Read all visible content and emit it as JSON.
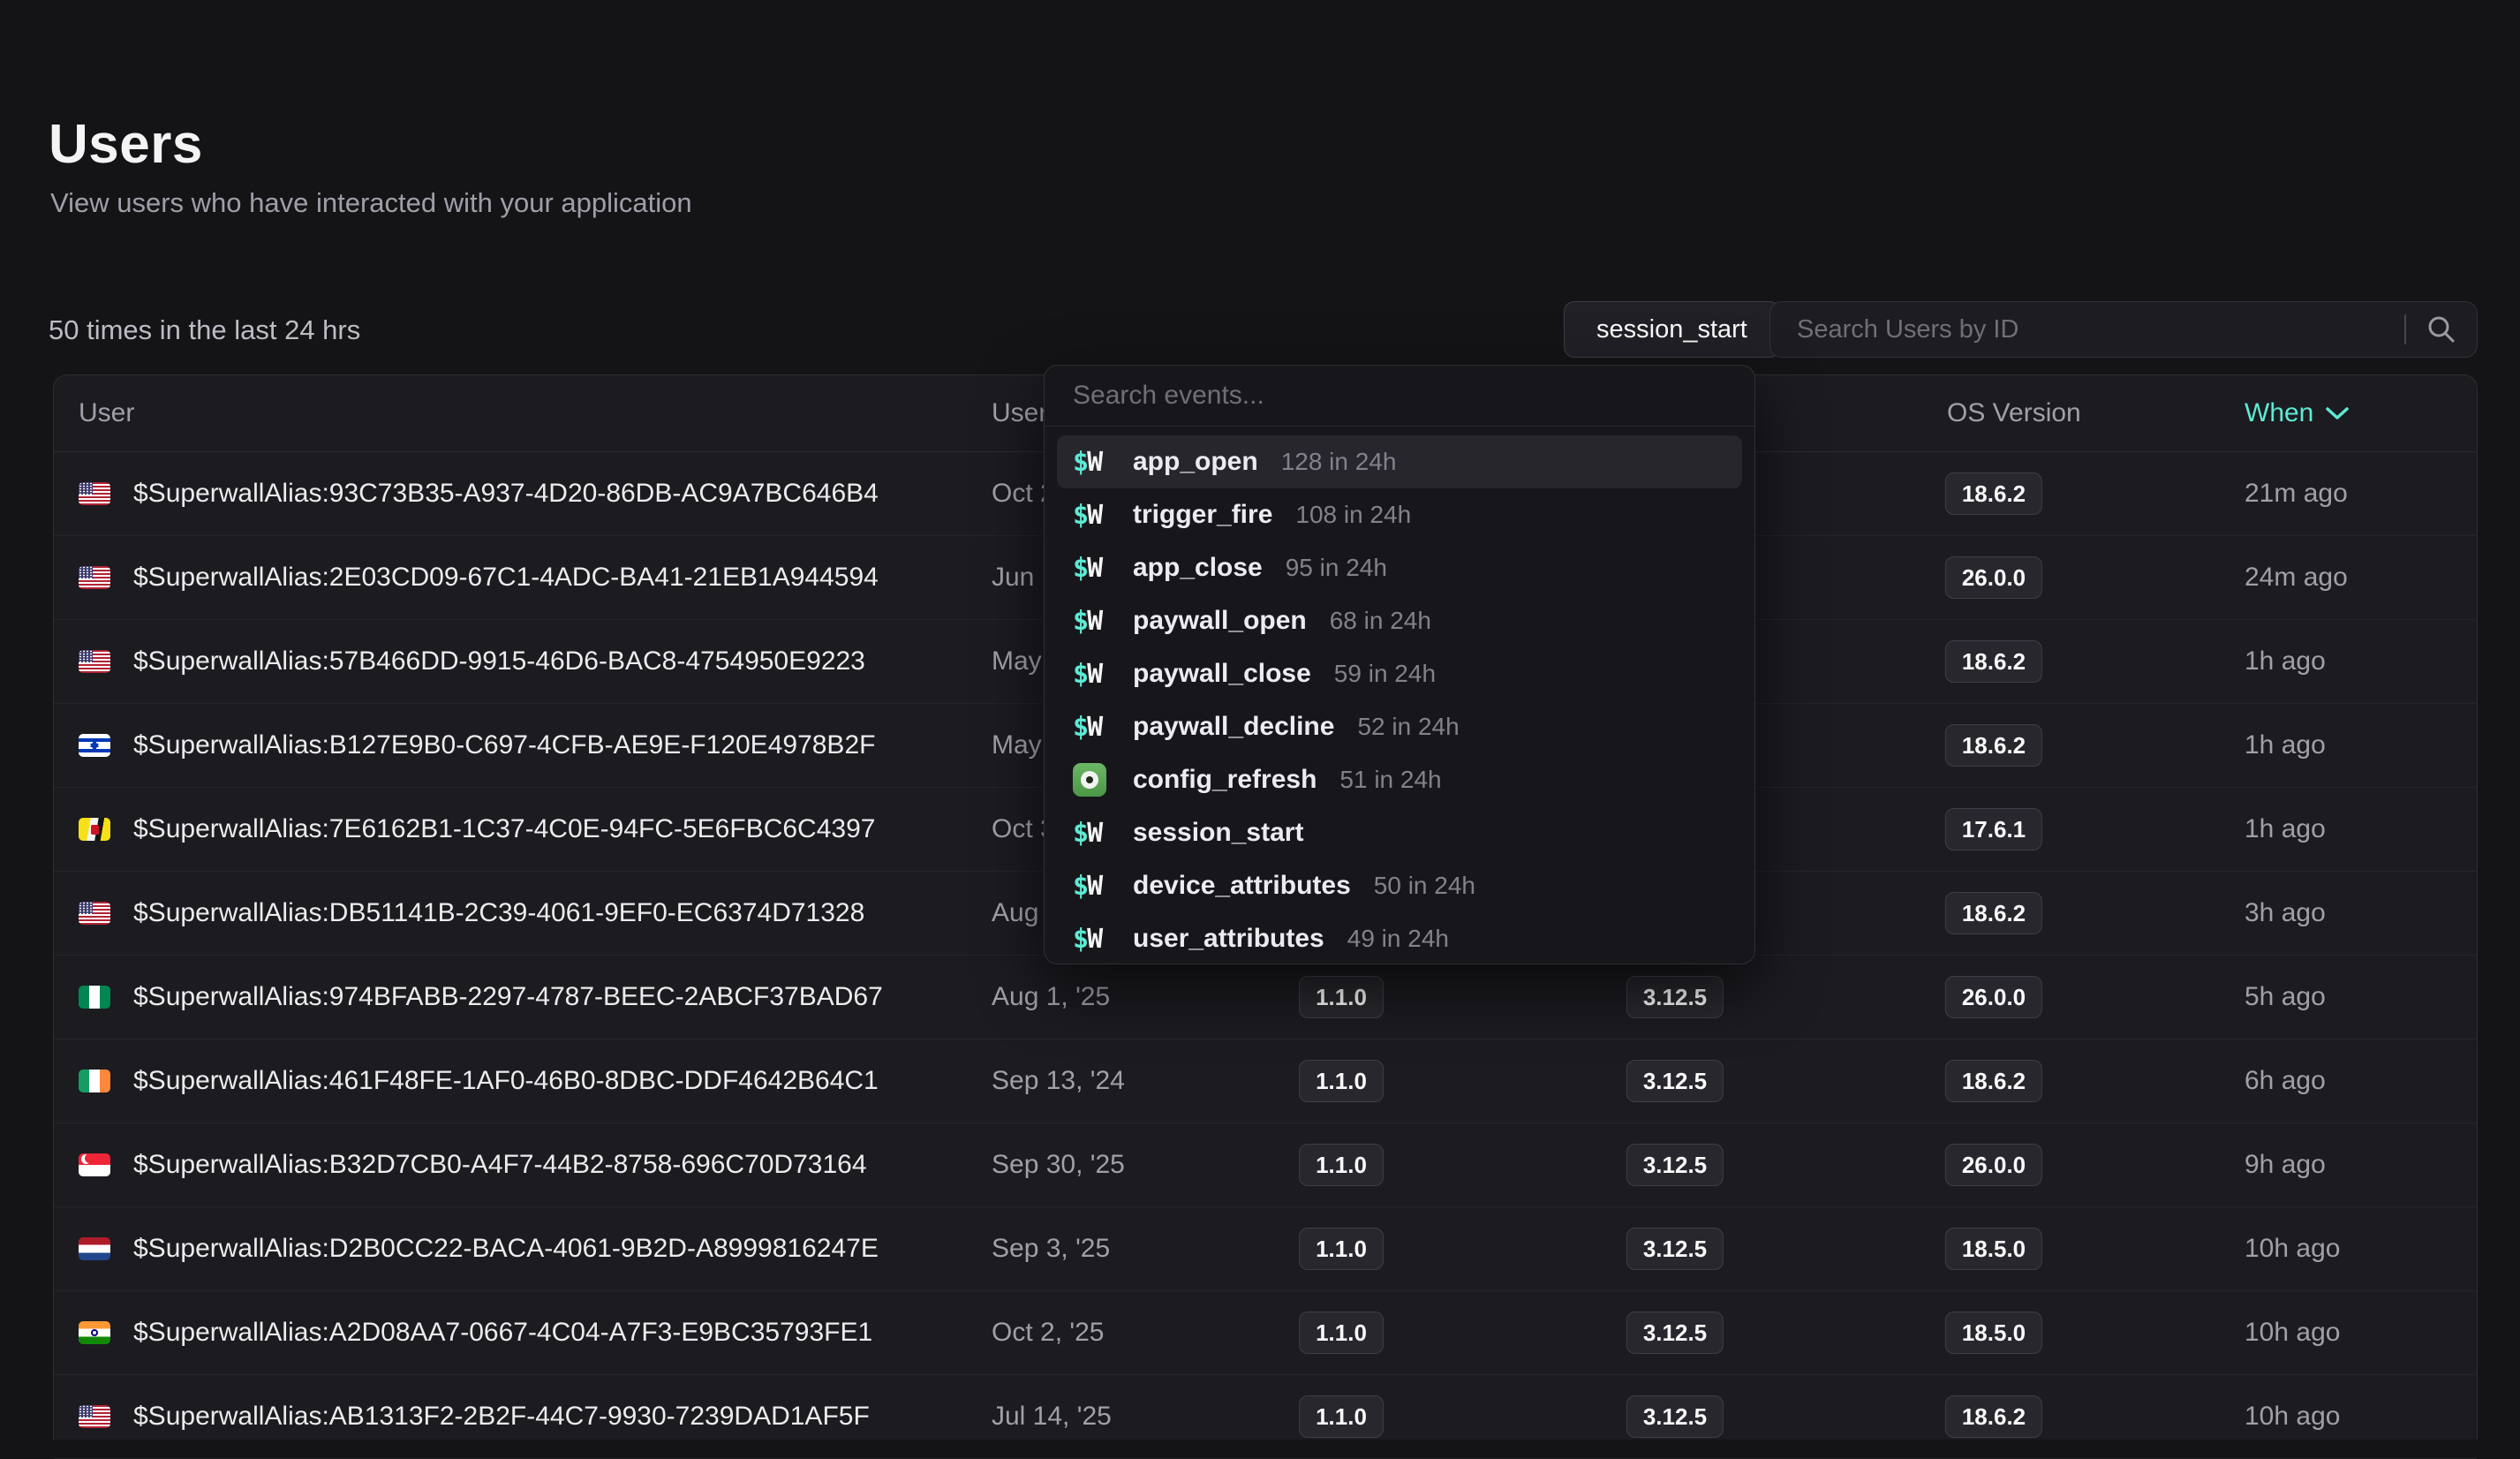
{
  "page": {
    "title": "Users",
    "subtitle": "View users who have interacted with your application"
  },
  "toolbar": {
    "stats_text": "50 times in the last 24 hrs",
    "event_filter_label": "session_start",
    "search_placeholder": "Search Users by ID"
  },
  "events_dropdown": {
    "search_placeholder": "Search events...",
    "sw_logo": "$W",
    "items": [
      {
        "icon": "sw",
        "name": "app_open",
        "count": "128 in 24h",
        "highlighted": true
      },
      {
        "icon": "sw",
        "name": "trigger_fire",
        "count": "108 in 24h",
        "highlighted": false
      },
      {
        "icon": "sw",
        "name": "app_close",
        "count": "95 in 24h",
        "highlighted": false
      },
      {
        "icon": "sw",
        "name": "paywall_open",
        "count": "68 in 24h",
        "highlighted": false
      },
      {
        "icon": "sw",
        "name": "paywall_close",
        "count": "59 in 24h",
        "highlighted": false
      },
      {
        "icon": "sw",
        "name": "paywall_decline",
        "count": "52 in 24h",
        "highlighted": false
      },
      {
        "icon": "app",
        "name": "config_refresh",
        "count": "51 in 24h",
        "highlighted": false
      },
      {
        "icon": "sw",
        "name": "session_start",
        "count": "",
        "highlighted": false
      },
      {
        "icon": "sw",
        "name": "device_attributes",
        "count": "50 in 24h",
        "highlighted": false
      },
      {
        "icon": "sw",
        "name": "user_attributes",
        "count": "49 in 24h",
        "highlighted": false
      }
    ]
  },
  "table": {
    "headers": {
      "user": "User",
      "user_since": "User",
      "os_version": "OS Version",
      "when": "When"
    },
    "rows": [
      {
        "flag": "us",
        "id": "$SuperwallAlias:93C73B35-A937-4D20-86DB-AC9A7BC646B4",
        "since": "Oct 2",
        "app_version": "",
        "sdk_version": "",
        "os_version": "18.6.2",
        "when": "21m ago"
      },
      {
        "flag": "us",
        "id": "$SuperwallAlias:2E03CD09-67C1-4ADC-BA41-21EB1A944594",
        "since": "Jun",
        "app_version": "",
        "sdk_version": "",
        "os_version": "26.0.0",
        "when": "24m ago"
      },
      {
        "flag": "us",
        "id": "$SuperwallAlias:57B466DD-9915-46D6-BAC8-4754950E9223",
        "since": "May",
        "app_version": "",
        "sdk_version": "",
        "os_version": "18.6.2",
        "when": "1h ago"
      },
      {
        "flag": "il",
        "id": "$SuperwallAlias:B127E9B0-C697-4CFB-AE9E-F120E4978B2F",
        "since": "May",
        "app_version": "",
        "sdk_version": "",
        "os_version": "18.6.2",
        "when": "1h ago"
      },
      {
        "flag": "bn",
        "id": "$SuperwallAlias:7E6162B1-1C37-4C0E-94FC-5E6FBC6C4397",
        "since": "Oct 3",
        "app_version": "",
        "sdk_version": "",
        "os_version": "17.6.1",
        "when": "1h ago"
      },
      {
        "flag": "us",
        "id": "$SuperwallAlias:DB51141B-2C39-4061-9EF0-EC6374D71328",
        "since": "Aug",
        "app_version": "",
        "sdk_version": "",
        "os_version": "18.6.2",
        "when": "3h ago"
      },
      {
        "flag": "ng",
        "id": "$SuperwallAlias:974BFABB-2297-4787-BEEC-2ABCF37BAD67",
        "since": "Aug 1, '25",
        "app_version": "1.1.0",
        "sdk_version": "3.12.5",
        "os_version": "26.0.0",
        "when": "5h ago"
      },
      {
        "flag": "ie",
        "id": "$SuperwallAlias:461F48FE-1AF0-46B0-8DBC-DDF4642B64C1",
        "since": "Sep 13, '24",
        "app_version": "1.1.0",
        "sdk_version": "3.12.5",
        "os_version": "18.6.2",
        "when": "6h ago"
      },
      {
        "flag": "sg",
        "id": "$SuperwallAlias:B32D7CB0-A4F7-44B2-8758-696C70D73164",
        "since": "Sep 30, '25",
        "app_version": "1.1.0",
        "sdk_version": "3.12.5",
        "os_version": "26.0.0",
        "when": "9h ago"
      },
      {
        "flag": "nl",
        "id": "$SuperwallAlias:D2B0CC22-BACA-4061-9B2D-A8999816247E",
        "since": "Sep 3, '25",
        "app_version": "1.1.0",
        "sdk_version": "3.12.5",
        "os_version": "18.5.0",
        "when": "10h ago"
      },
      {
        "flag": "in",
        "id": "$SuperwallAlias:A2D08AA7-0667-4C04-A7F3-E9BC35793FE1",
        "since": "Oct 2, '25",
        "app_version": "1.1.0",
        "sdk_version": "3.12.5",
        "os_version": "18.5.0",
        "when": "10h ago"
      },
      {
        "flag": "us",
        "id": "$SuperwallAlias:AB1313F2-2B2F-44C7-9930-7239DAD1AF5F",
        "since": "Jul 14, '25",
        "app_version": "1.1.0",
        "sdk_version": "3.12.5",
        "os_version": "18.6.2",
        "when": "10h ago"
      }
    ]
  },
  "colors": {
    "accent_teal": "#5eead4",
    "page_background": "#141417",
    "table_background": "#1b1b20",
    "config_icon_green": "#55a555"
  }
}
